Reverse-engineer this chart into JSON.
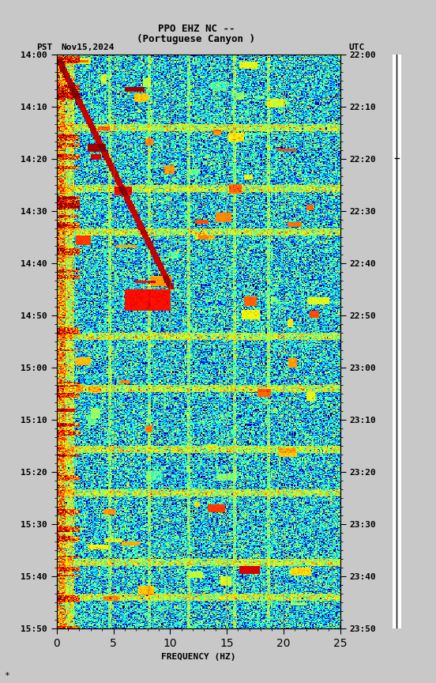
{
  "title_line1": "PPO EHZ NC --",
  "title_line2": "(Portuguese Canyon )",
  "label_left": "PST",
  "label_date": "Nov15,2024",
  "label_right": "UTC",
  "freq_min": 0,
  "freq_max": 25,
  "freq_label": "FREQUENCY (HZ)",
  "time_start_pst": "14:00",
  "time_end_pst": "15:50",
  "time_start_utc": "22:00",
  "time_end_utc": "23:50",
  "yticks_pst": [
    "14:00",
    "14:10",
    "14:20",
    "14:30",
    "14:40",
    "14:50",
    "15:00",
    "15:10",
    "15:20",
    "15:30",
    "15:40",
    "15:50"
  ],
  "yticks_utc": [
    "22:00",
    "22:10",
    "22:20",
    "22:30",
    "22:40",
    "22:50",
    "23:00",
    "23:10",
    "23:20",
    "23:30",
    "23:40",
    "23:50"
  ],
  "vlines_freq": [
    5,
    10,
    15,
    20
  ],
  "bg_color": "#000000",
  "fig_bg": "#c8c8c8",
  "colormap": "jet",
  "fig_width": 5.52,
  "fig_height": 8.64,
  "font_size_title": 9,
  "font_size_labels": 8,
  "font_size_ticks": 8
}
